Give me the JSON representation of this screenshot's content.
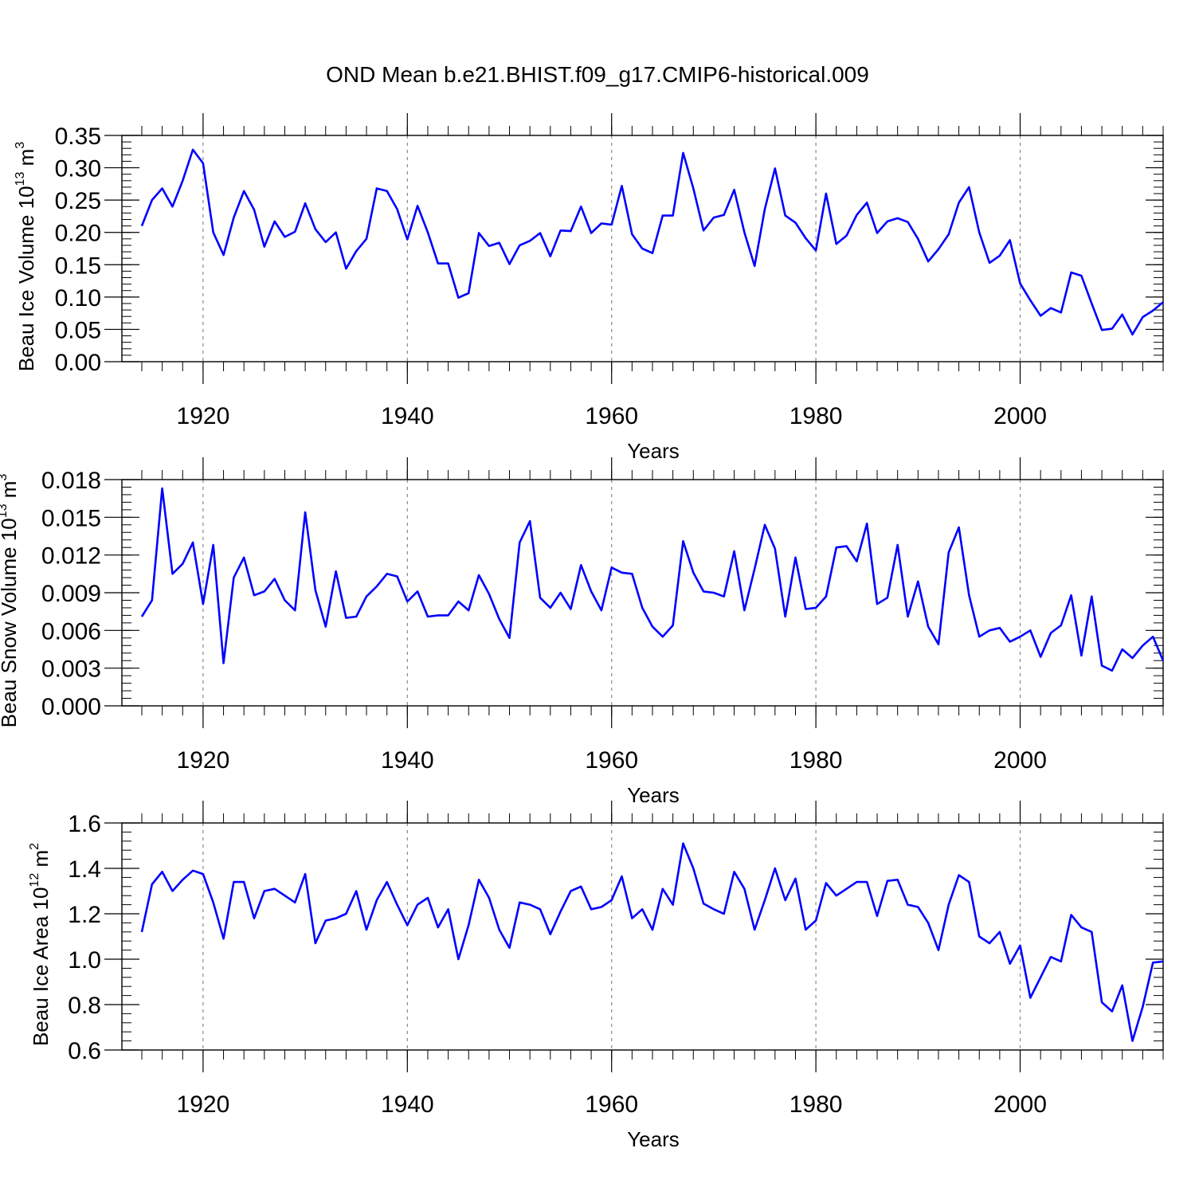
{
  "title": "OND Mean b.e21.BHIST.f09_g17.CMIP6-historical.009",
  "colors": {
    "line": "#0000ff",
    "axis": "#000000",
    "grid": "#888888"
  },
  "chart_data": [
    {
      "type": "line",
      "name": "ice-volume",
      "title": "",
      "xlabel": "Years",
      "ylabel": "Beau Ice Volume",
      "ylabel_parts": {
        "base": "Beau Ice Volume 10",
        "exp": "13",
        "unit": " m",
        "unit_exp": "3"
      },
      "x_start": 1914,
      "xlim": [
        1914,
        2014
      ],
      "ylim": [
        0,
        0.35
      ],
      "y_ticks": [
        "0.00",
        "0.05",
        "0.10",
        "0.15",
        "0.20",
        "0.25",
        "0.30",
        "0.35"
      ],
      "x_ticks": [
        "1920",
        "1940",
        "1960",
        "1980",
        "2000"
      ],
      "values": [
        0.21,
        0.25,
        0.268,
        0.24,
        0.28,
        0.328,
        0.307,
        0.2,
        0.165,
        0.223,
        0.264,
        0.235,
        0.178,
        0.217,
        0.193,
        0.201,
        0.245,
        0.205,
        0.185,
        0.2,
        0.144,
        0.171,
        0.19,
        0.268,
        0.264,
        0.236,
        0.189,
        0.241,
        0.2,
        0.152,
        0.152,
        0.099,
        0.106,
        0.199,
        0.179,
        0.184,
        0.151,
        0.18,
        0.187,
        0.199,
        0.163,
        0.203,
        0.202,
        0.24,
        0.199,
        0.214,
        0.212,
        0.272,
        0.197,
        0.175,
        0.168,
        0.226,
        0.226,
        0.323,
        0.268,
        0.203,
        0.223,
        0.227,
        0.266,
        0.2,
        0.148,
        0.236,
        0.299,
        0.226,
        0.215,
        0.191,
        0.172,
        0.26,
        0.182,
        0.195,
        0.227,
        0.246,
        0.199,
        0.217,
        0.222,
        0.216,
        0.19,
        0.155,
        0.174,
        0.197,
        0.246,
        0.27,
        0.2,
        0.153,
        0.164,
        0.188,
        0.121,
        0.095,
        0.071,
        0.083,
        0.076,
        0.138,
        0.133,
        0.09,
        0.049,
        0.051,
        0.073,
        0.042,
        0.069,
        0.079,
        0.092
      ]
    },
    {
      "type": "line",
      "name": "snow-volume",
      "title": "",
      "xlabel": "Years",
      "ylabel": "Beau Snow Volume",
      "ylabel_parts": {
        "base": "Beau Snow Volume 10",
        "exp": "13",
        "unit": " m",
        "unit_exp": "3"
      },
      "x_start": 1914,
      "xlim": [
        1914,
        2014
      ],
      "ylim": [
        0,
        0.018
      ],
      "y_ticks": [
        "0.000",
        "0.003",
        "0.006",
        "0.009",
        "0.012",
        "0.015",
        "0.018"
      ],
      "x_ticks": [
        "1920",
        "1940",
        "1960",
        "1980",
        "2000"
      ],
      "values": [
        0.0071,
        0.0084,
        0.0173,
        0.0105,
        0.0113,
        0.013,
        0.0081,
        0.0128,
        0.0034,
        0.0102,
        0.0118,
        0.0088,
        0.0091,
        0.0101,
        0.0084,
        0.0076,
        0.0154,
        0.0092,
        0.0063,
        0.0107,
        0.007,
        0.0071,
        0.0087,
        0.0095,
        0.0105,
        0.0103,
        0.0083,
        0.0091,
        0.0071,
        0.0072,
        0.0072,
        0.0083,
        0.0076,
        0.0104,
        0.0089,
        0.0069,
        0.0054,
        0.013,
        0.0147,
        0.0086,
        0.0078,
        0.009,
        0.0077,
        0.0112,
        0.0091,
        0.0076,
        0.011,
        0.0106,
        0.0105,
        0.0078,
        0.0063,
        0.0055,
        0.0064,
        0.0131,
        0.0106,
        0.0091,
        0.009,
        0.0087,
        0.0123,
        0.0076,
        0.0109,
        0.0144,
        0.0125,
        0.0071,
        0.0118,
        0.0077,
        0.0078,
        0.0087,
        0.0126,
        0.0127,
        0.0115,
        0.0145,
        0.0081,
        0.0086,
        0.0128,
        0.0071,
        0.0099,
        0.0063,
        0.0049,
        0.0122,
        0.0142,
        0.0088,
        0.0055,
        0.006,
        0.0062,
        0.0051,
        0.0055,
        0.006,
        0.0039,
        0.0058,
        0.0064,
        0.0088,
        0.004,
        0.0087,
        0.0032,
        0.0028,
        0.0045,
        0.0038,
        0.0048,
        0.0055,
        0.0036
      ]
    },
    {
      "type": "line",
      "name": "ice-area",
      "title": "",
      "xlabel": "Years",
      "ylabel": "Beau Ice Area",
      "ylabel_parts": {
        "base": "Beau Ice Area 10",
        "exp": "12",
        "unit": " m",
        "unit_exp": "2"
      },
      "x_start": 1914,
      "xlim": [
        1914,
        2014
      ],
      "ylim": [
        0.6,
        1.6
      ],
      "y_ticks": [
        "0.6",
        "0.8",
        "1.0",
        "1.2",
        "1.4",
        "1.6"
      ],
      "x_ticks": [
        "1920",
        "1940",
        "1960",
        "1980",
        "2000"
      ],
      "values": [
        1.12,
        1.33,
        1.385,
        1.3,
        1.35,
        1.39,
        1.375,
        1.25,
        1.09,
        1.34,
        1.34,
        1.18,
        1.3,
        1.31,
        1.28,
        1.25,
        1.375,
        1.07,
        1.17,
        1.18,
        1.2,
        1.3,
        1.13,
        1.26,
        1.34,
        1.24,
        1.15,
        1.24,
        1.27,
        1.14,
        1.22,
        1.0,
        1.15,
        1.35,
        1.27,
        1.13,
        1.05,
        1.25,
        1.24,
        1.22,
        1.11,
        1.21,
        1.3,
        1.32,
        1.22,
        1.23,
        1.26,
        1.365,
        1.18,
        1.22,
        1.13,
        1.31,
        1.24,
        1.51,
        1.4,
        1.245,
        1.22,
        1.2,
        1.385,
        1.31,
        1.13,
        1.26,
        1.4,
        1.26,
        1.355,
        1.13,
        1.17,
        1.335,
        1.28,
        1.31,
        1.34,
        1.34,
        1.19,
        1.345,
        1.35,
        1.24,
        1.23,
        1.16,
        1.04,
        1.24,
        1.37,
        1.34,
        1.1,
        1.07,
        1.12,
        0.98,
        1.06,
        0.83,
        0.92,
        1.01,
        0.99,
        1.195,
        1.14,
        1.12,
        0.81,
        0.77,
        0.885,
        0.64,
        0.79,
        0.985,
        0.99
      ]
    }
  ]
}
